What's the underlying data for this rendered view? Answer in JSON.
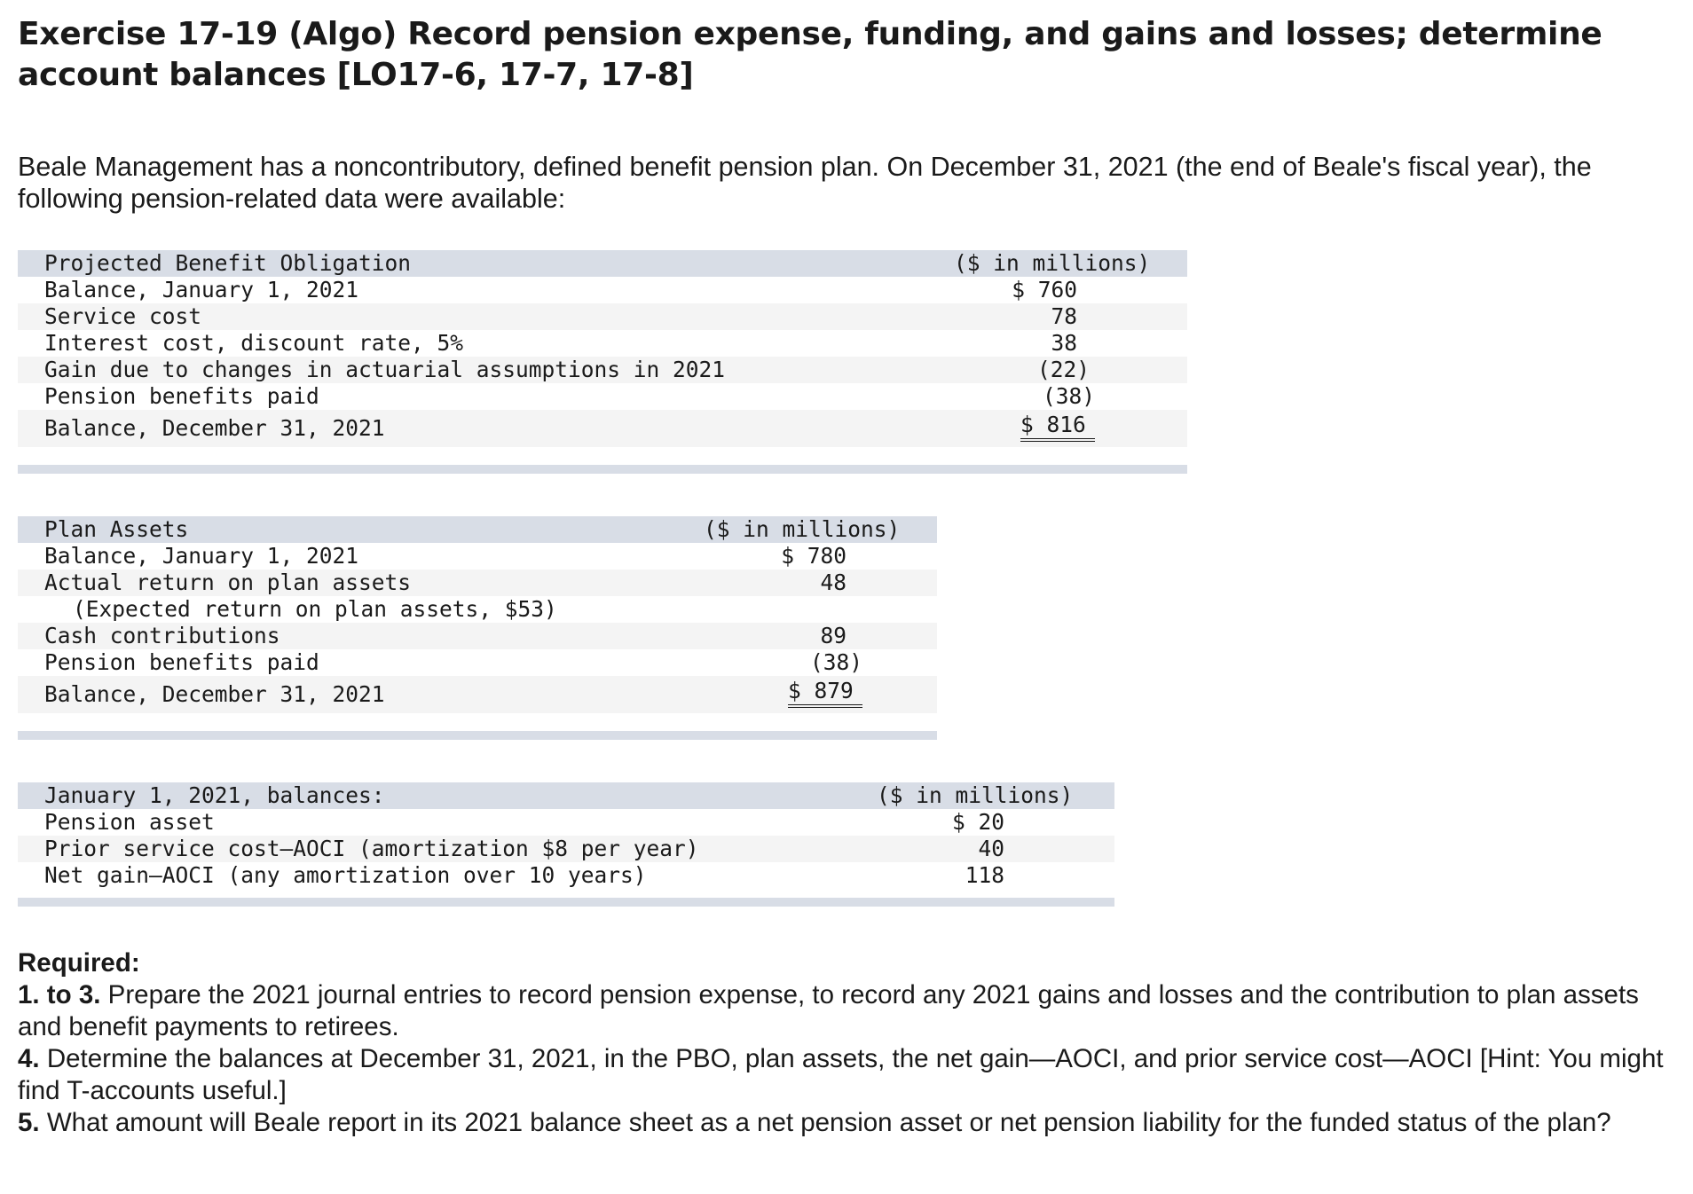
{
  "title": "Exercise 17-19 (Algo) Record pension expense, funding, and gains and losses; determine account balances [LO17-6, 17-7, 17-8]",
  "intro": "Beale Management has a noncontributory, defined benefit pension plan. On December 31, 2021 (the end of Beale's fiscal year), the following pension-related data were available:",
  "pbo": {
    "header": "Projected Benefit Obligation",
    "unit": "($ in millions)",
    "rows": [
      {
        "label": "Balance, January 1, 2021",
        "value": "$ 760"
      },
      {
        "label": "Service cost",
        "value": "78"
      },
      {
        "label": "Interest cost, discount rate, 5%",
        "value": "38"
      },
      {
        "label": "Gain due to changes in actuarial assumptions in 2021",
        "value": "(22)"
      },
      {
        "label": "Pension benefits paid",
        "value": "(38)"
      },
      {
        "label": "Balance, December 31, 2021",
        "value": "$ 816"
      }
    ]
  },
  "plan_assets": {
    "header": "Plan Assets",
    "unit": "($ in millions)",
    "rows": [
      {
        "label": "Balance, January 1, 2021",
        "value": "$ 780"
      },
      {
        "label": "Actual return on plan assets",
        "value": "48"
      },
      {
        "label": "(Expected return on plan assets, $53)",
        "value": ""
      },
      {
        "label": "Cash contributions",
        "value": "89"
      },
      {
        "label": "Pension benefits paid",
        "value": "(38)"
      },
      {
        "label": "Balance, December 31, 2021",
        "value": "$ 879"
      }
    ]
  },
  "balances": {
    "header": "January 1, 2021, balances:",
    "unit": "($ in millions)",
    "rows": [
      {
        "label": "Pension asset",
        "value": "$ 20"
      },
      {
        "label": "Prior service cost—AOCI (amortization $8 per year)",
        "value": "40"
      },
      {
        "label": "Net gain—AOCI (any amortization over 10 years)",
        "value": "118"
      }
    ]
  },
  "required": {
    "heading": "Required:",
    "items": [
      {
        "num": "1. to 3.",
        "text": "Prepare the 2021 journal entries to record pension expense, to record any 2021 gains and losses and the contribution to plan assets and benefit payments to retirees."
      },
      {
        "num": "4.",
        "text": "Determine the balances at December 31, 2021, in the PBO, plan assets, the net gain—AOCI, and prior service cost—AOCI [Hint: You might find T-accounts useful.]"
      },
      {
        "num": "5.",
        "text": "What amount will Beale report in its 2021 balance sheet as a net pension asset or net pension liability for the funded status of the plan?"
      }
    ]
  }
}
